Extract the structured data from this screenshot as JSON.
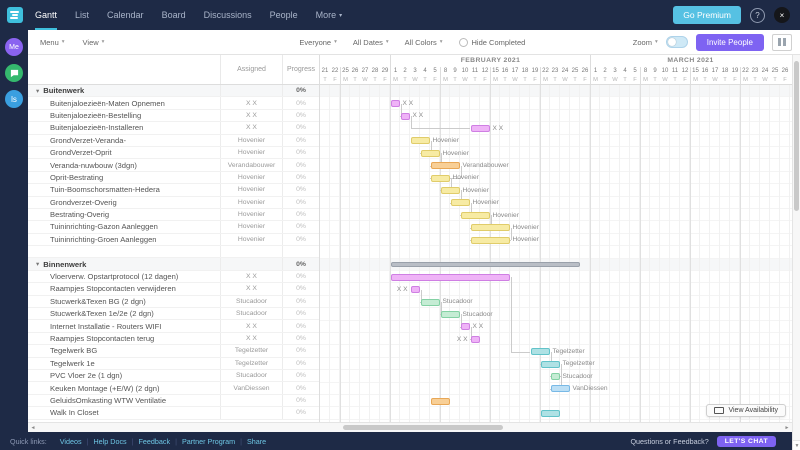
{
  "topnav": {
    "tabs": [
      "Gantt",
      "List",
      "Calendar",
      "Board",
      "Discussions",
      "People",
      "More"
    ],
    "active_tab": "Gantt",
    "go_premium": "Go Premium",
    "help": "?",
    "avatar_initial": "×"
  },
  "rail": {
    "me": "Me",
    "app": "ls"
  },
  "toolbar": {
    "menu": "Menu",
    "view": "View",
    "everyone": "Everyone",
    "all_dates": "All Dates",
    "all_colors": "All Colors",
    "hide_completed": "Hide Completed",
    "zoom": "Zoom",
    "invite": "Invite People"
  },
  "table_headers": {
    "assigned": "Assigned",
    "progress": "Progress"
  },
  "rows": [
    {
      "type": "group",
      "name": "Buitenwerk",
      "assigned": "",
      "progress": "0%"
    },
    {
      "type": "task",
      "name": "Buitenjaloezieën-Maten Opnemen",
      "assigned": "X X",
      "progress": "0%"
    },
    {
      "type": "task",
      "name": "Buitenjaloezieën-Bestelling",
      "assigned": "X X",
      "progress": "0%"
    },
    {
      "type": "task",
      "name": "Buitenjaloezieën-Installeren",
      "assigned": "X X",
      "progress": "0%"
    },
    {
      "type": "task",
      "name": "GrondVerzet-Veranda-",
      "assigned": "Hovenier",
      "progress": "0%"
    },
    {
      "type": "task",
      "name": "GrondVerzet-Oprit",
      "assigned": "Hovenier",
      "progress": "0%"
    },
    {
      "type": "task",
      "name": "Veranda-nuwbouw (3dgn)",
      "assigned": "Verandabouwer",
      "progress": "0%"
    },
    {
      "type": "task",
      "name": "Oprit-Bestrating",
      "assigned": "Hovenier",
      "progress": "0%"
    },
    {
      "type": "task",
      "name": "Tuin-Boomschorsmatten-Hedera",
      "assigned": "Hovenier",
      "progress": "0%"
    },
    {
      "type": "task",
      "name": "Grondverzet-Overig",
      "assigned": "Hovenier",
      "progress": "0%"
    },
    {
      "type": "task",
      "name": "Bestrating-Overig",
      "assigned": "Hovenier",
      "progress": "0%"
    },
    {
      "type": "task",
      "name": "Tuininrichting-Gazon Aanleggen",
      "assigned": "Hovenier",
      "progress": "0%"
    },
    {
      "type": "task",
      "name": "Tuininrichting-Groen Aanleggen",
      "assigned": "Hovenier",
      "progress": "0%"
    },
    {
      "type": "blank",
      "name": "",
      "assigned": "",
      "progress": ""
    },
    {
      "type": "group",
      "name": "Binnenwerk",
      "assigned": "",
      "progress": "0%"
    },
    {
      "type": "task",
      "name": "Vloerverw. Opstartprotocol (12 dagen)",
      "assigned": "X X",
      "progress": "0%"
    },
    {
      "type": "task",
      "name": "Raampjes Stopcontacten verwijderen",
      "assigned": "X X",
      "progress": "0%"
    },
    {
      "type": "task",
      "name": "Stucwerk&Texen BG (2 dgn)",
      "assigned": "Stucadoor",
      "progress": "0%"
    },
    {
      "type": "task",
      "name": "Stucwerk&Texen 1e/2e (2 dgn)",
      "assigned": "Stucadoor",
      "progress": "0%"
    },
    {
      "type": "task",
      "name": "Internet Installatie - Routers WIFI",
      "assigned": "X X",
      "progress": "0%"
    },
    {
      "type": "task",
      "name": "Raampjes Stopcontacten terug",
      "assigned": "X X",
      "progress": "0%"
    },
    {
      "type": "task",
      "name": "Tegelwerk BG",
      "assigned": "Tegelzetter",
      "progress": "0%"
    },
    {
      "type": "task",
      "name": "Tegelwerk 1e",
      "assigned": "Tegelzetter",
      "progress": "0%"
    },
    {
      "type": "task",
      "name": "PVC Vloer 2e (1 dgn)",
      "assigned": "Stucadoor",
      "progress": "0%"
    },
    {
      "type": "task",
      "name": "Keuken Montage (+E/W) (2 dgn)",
      "assigned": "VanDiessen",
      "progress": "0%"
    },
    {
      "type": "task",
      "name": "GeluidsOmkasting WTW Ventilatie",
      "assigned": "",
      "progress": "0%"
    },
    {
      "type": "task",
      "name": "Walk In Closet",
      "assigned": "",
      "progress": "0%"
    }
  ],
  "timeline": {
    "months": [
      {
        "label": "FEBRUARY 2021",
        "start": 7,
        "span": 20
      },
      {
        "label": "MARCH 2021",
        "start": 27,
        "span": 20
      }
    ],
    "days": [
      {
        "n": "21",
        "d": "T"
      },
      {
        "n": "22",
        "d": "F"
      },
      {
        "n": "25",
        "d": "M"
      },
      {
        "n": "26",
        "d": "T"
      },
      {
        "n": "27",
        "d": "W"
      },
      {
        "n": "28",
        "d": "T"
      },
      {
        "n": "29",
        "d": "F"
      },
      {
        "n": "1",
        "d": "M"
      },
      {
        "n": "2",
        "d": "T"
      },
      {
        "n": "3",
        "d": "W"
      },
      {
        "n": "4",
        "d": "T"
      },
      {
        "n": "5",
        "d": "F"
      },
      {
        "n": "8",
        "d": "M"
      },
      {
        "n": "9",
        "d": "T"
      },
      {
        "n": "10",
        "d": "W"
      },
      {
        "n": "11",
        "d": "T"
      },
      {
        "n": "12",
        "d": "F"
      },
      {
        "n": "15",
        "d": "M"
      },
      {
        "n": "16",
        "d": "T"
      },
      {
        "n": "17",
        "d": "W"
      },
      {
        "n": "18",
        "d": "T"
      },
      {
        "n": "19",
        "d": "F"
      },
      {
        "n": "22",
        "d": "M"
      },
      {
        "n": "23",
        "d": "T"
      },
      {
        "n": "24",
        "d": "W"
      },
      {
        "n": "25",
        "d": "T"
      },
      {
        "n": "26",
        "d": "F"
      },
      {
        "n": "1",
        "d": "M"
      },
      {
        "n": "2",
        "d": "T"
      },
      {
        "n": "3",
        "d": "W"
      },
      {
        "n": "4",
        "d": "T"
      },
      {
        "n": "5",
        "d": "F"
      },
      {
        "n": "8",
        "d": "M"
      },
      {
        "n": "9",
        "d": "T"
      },
      {
        "n": "10",
        "d": "W"
      },
      {
        "n": "11",
        "d": "T"
      },
      {
        "n": "12",
        "d": "F"
      },
      {
        "n": "15",
        "d": "M"
      },
      {
        "n": "16",
        "d": "T"
      },
      {
        "n": "17",
        "d": "W"
      },
      {
        "n": "18",
        "d": "T"
      },
      {
        "n": "19",
        "d": "F"
      },
      {
        "n": "22",
        "d": "M"
      },
      {
        "n": "23",
        "d": "T"
      },
      {
        "n": "24",
        "d": "W"
      },
      {
        "n": "25",
        "d": "T"
      },
      {
        "n": "26",
        "d": "F"
      }
    ]
  },
  "colors": {
    "purple": {
      "f": "#efb3f7",
      "b": "#cf7fe3"
    },
    "yellow": {
      "f": "#f7eba4",
      "b": "#e0cc6a"
    },
    "orange": {
      "f": "#f8cf96",
      "b": "#e8a756"
    },
    "green": {
      "f": "#c5ecd4",
      "b": "#84d1a4"
    },
    "teal": {
      "f": "#aee1e4",
      "b": "#62c3c9"
    },
    "blue": {
      "f": "#bcdff5",
      "b": "#78b9e6"
    },
    "gray": {
      "f": "#b9bec6",
      "b": "#9aa1ab"
    }
  },
  "bars": [
    {
      "row": 1,
      "col": 7,
      "days": 1,
      "color": "purple",
      "label": "X X",
      "side": "right"
    },
    {
      "row": 2,
      "col": 8,
      "days": 1,
      "color": "purple",
      "label": "X X",
      "side": "right"
    },
    {
      "row": 3,
      "col": 15,
      "days": 2,
      "color": "purple",
      "label": "X X",
      "side": "right"
    },
    {
      "row": 4,
      "col": 9,
      "days": 2,
      "color": "yellow",
      "label": "Hovenier",
      "side": "right"
    },
    {
      "row": 5,
      "col": 10,
      "days": 2,
      "color": "yellow",
      "label": "Hovenier",
      "side": "right"
    },
    {
      "row": 6,
      "col": 11,
      "days": 3,
      "color": "orange",
      "label": "Verandabouwer",
      "side": "right"
    },
    {
      "row": 7,
      "col": 11,
      "days": 2,
      "color": "yellow",
      "label": "Hovenier",
      "side": "right"
    },
    {
      "row": 8,
      "col": 12,
      "days": 2,
      "color": "yellow",
      "label": "Hovenier",
      "side": "right"
    },
    {
      "row": 9,
      "col": 13,
      "days": 2,
      "color": "yellow",
      "label": "Hovenier",
      "side": "right"
    },
    {
      "row": 10,
      "col": 14,
      "days": 3,
      "color": "yellow",
      "label": "Hovenier",
      "side": "right"
    },
    {
      "row": 11,
      "col": 15,
      "days": 4,
      "color": "yellow",
      "label": "Hovenier",
      "side": "right"
    },
    {
      "row": 12,
      "col": 15,
      "days": 4,
      "color": "yellow",
      "label": "Hovenier",
      "side": "right"
    },
    {
      "row": 14,
      "col": 7,
      "days": 19,
      "color": "gray",
      "label": "",
      "group": true
    },
    {
      "row": 15,
      "col": 7,
      "days": 12,
      "color": "purple",
      "label": ""
    },
    {
      "row": 16,
      "col": 9,
      "days": 1,
      "color": "purple",
      "label": "X X",
      "side": "left"
    },
    {
      "row": 17,
      "col": 10,
      "days": 2,
      "color": "green",
      "label": "Stucadoor",
      "side": "right"
    },
    {
      "row": 18,
      "col": 12,
      "days": 2,
      "color": "green",
      "label": "Stucadoor",
      "side": "right"
    },
    {
      "row": 19,
      "col": 14,
      "days": 1,
      "color": "purple",
      "label": "X X",
      "side": "right"
    },
    {
      "row": 20,
      "col": 15,
      "days": 1,
      "color": "purple",
      "label": "X X",
      "side": "left"
    },
    {
      "row": 21,
      "col": 21,
      "days": 2,
      "color": "teal",
      "label": "Tegelzetter",
      "side": "right"
    },
    {
      "row": 22,
      "col": 22,
      "days": 2,
      "color": "teal",
      "label": "Tegelzetter",
      "side": "right"
    },
    {
      "row": 23,
      "col": 23,
      "days": 1,
      "color": "green",
      "label": "Stucadoor",
      "side": "right"
    },
    {
      "row": 24,
      "col": 23,
      "days": 2,
      "color": "blue",
      "label": "VanDiessen",
      "side": "right"
    },
    {
      "row": 25,
      "col": 11,
      "days": 2,
      "color": "orange",
      "label": ""
    },
    {
      "row": 26,
      "col": 22,
      "days": 2,
      "color": "teal",
      "label": ""
    }
  ],
  "connectors": [
    [
      0,
      1
    ],
    [
      1,
      2
    ],
    [
      3,
      4
    ],
    [
      4,
      5
    ],
    [
      5,
      6
    ],
    [
      6,
      7
    ],
    [
      7,
      8
    ],
    [
      8,
      9
    ],
    [
      9,
      10
    ],
    [
      10,
      11
    ],
    [
      14,
      15
    ],
    [
      15,
      16
    ],
    [
      16,
      17
    ],
    [
      17,
      18
    ],
    [
      13,
      19
    ],
    [
      19,
      20
    ],
    [
      20,
      21
    ],
    [
      21,
      22
    ]
  ],
  "view_availability": "View Availability",
  "footer": {
    "quick_links_label": "Quick links:",
    "links": [
      "Videos",
      "Help Docs",
      "Feedback",
      "Partner Program",
      "Share"
    ],
    "questions": "Questions or Feedback?",
    "chat": "LET'S CHAT"
  }
}
